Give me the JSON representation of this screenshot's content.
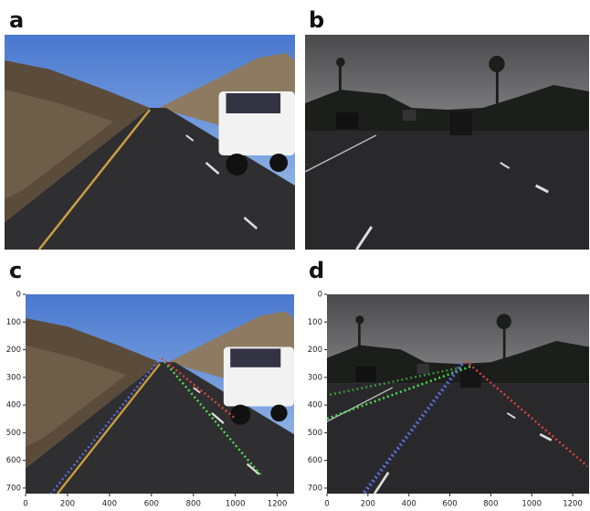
{
  "panels": [
    {
      "label": "a"
    },
    {
      "label": "b"
    },
    {
      "label": "c",
      "xlim": [
        0,
        1280
      ],
      "ylim": [
        0,
        720
      ],
      "xticks": [
        0,
        200,
        400,
        600,
        800,
        1000,
        1200
      ],
      "yticks": [
        0,
        100,
        200,
        300,
        400,
        500,
        600,
        700
      ]
    },
    {
      "label": "d",
      "xlim": [
        0,
        1280
      ],
      "ylim": [
        0,
        720
      ],
      "xticks": [
        0,
        200,
        400,
        600,
        800,
        1000,
        1200
      ],
      "yticks": [
        0,
        100,
        200,
        300,
        400,
        500,
        600,
        700
      ]
    }
  ]
}
